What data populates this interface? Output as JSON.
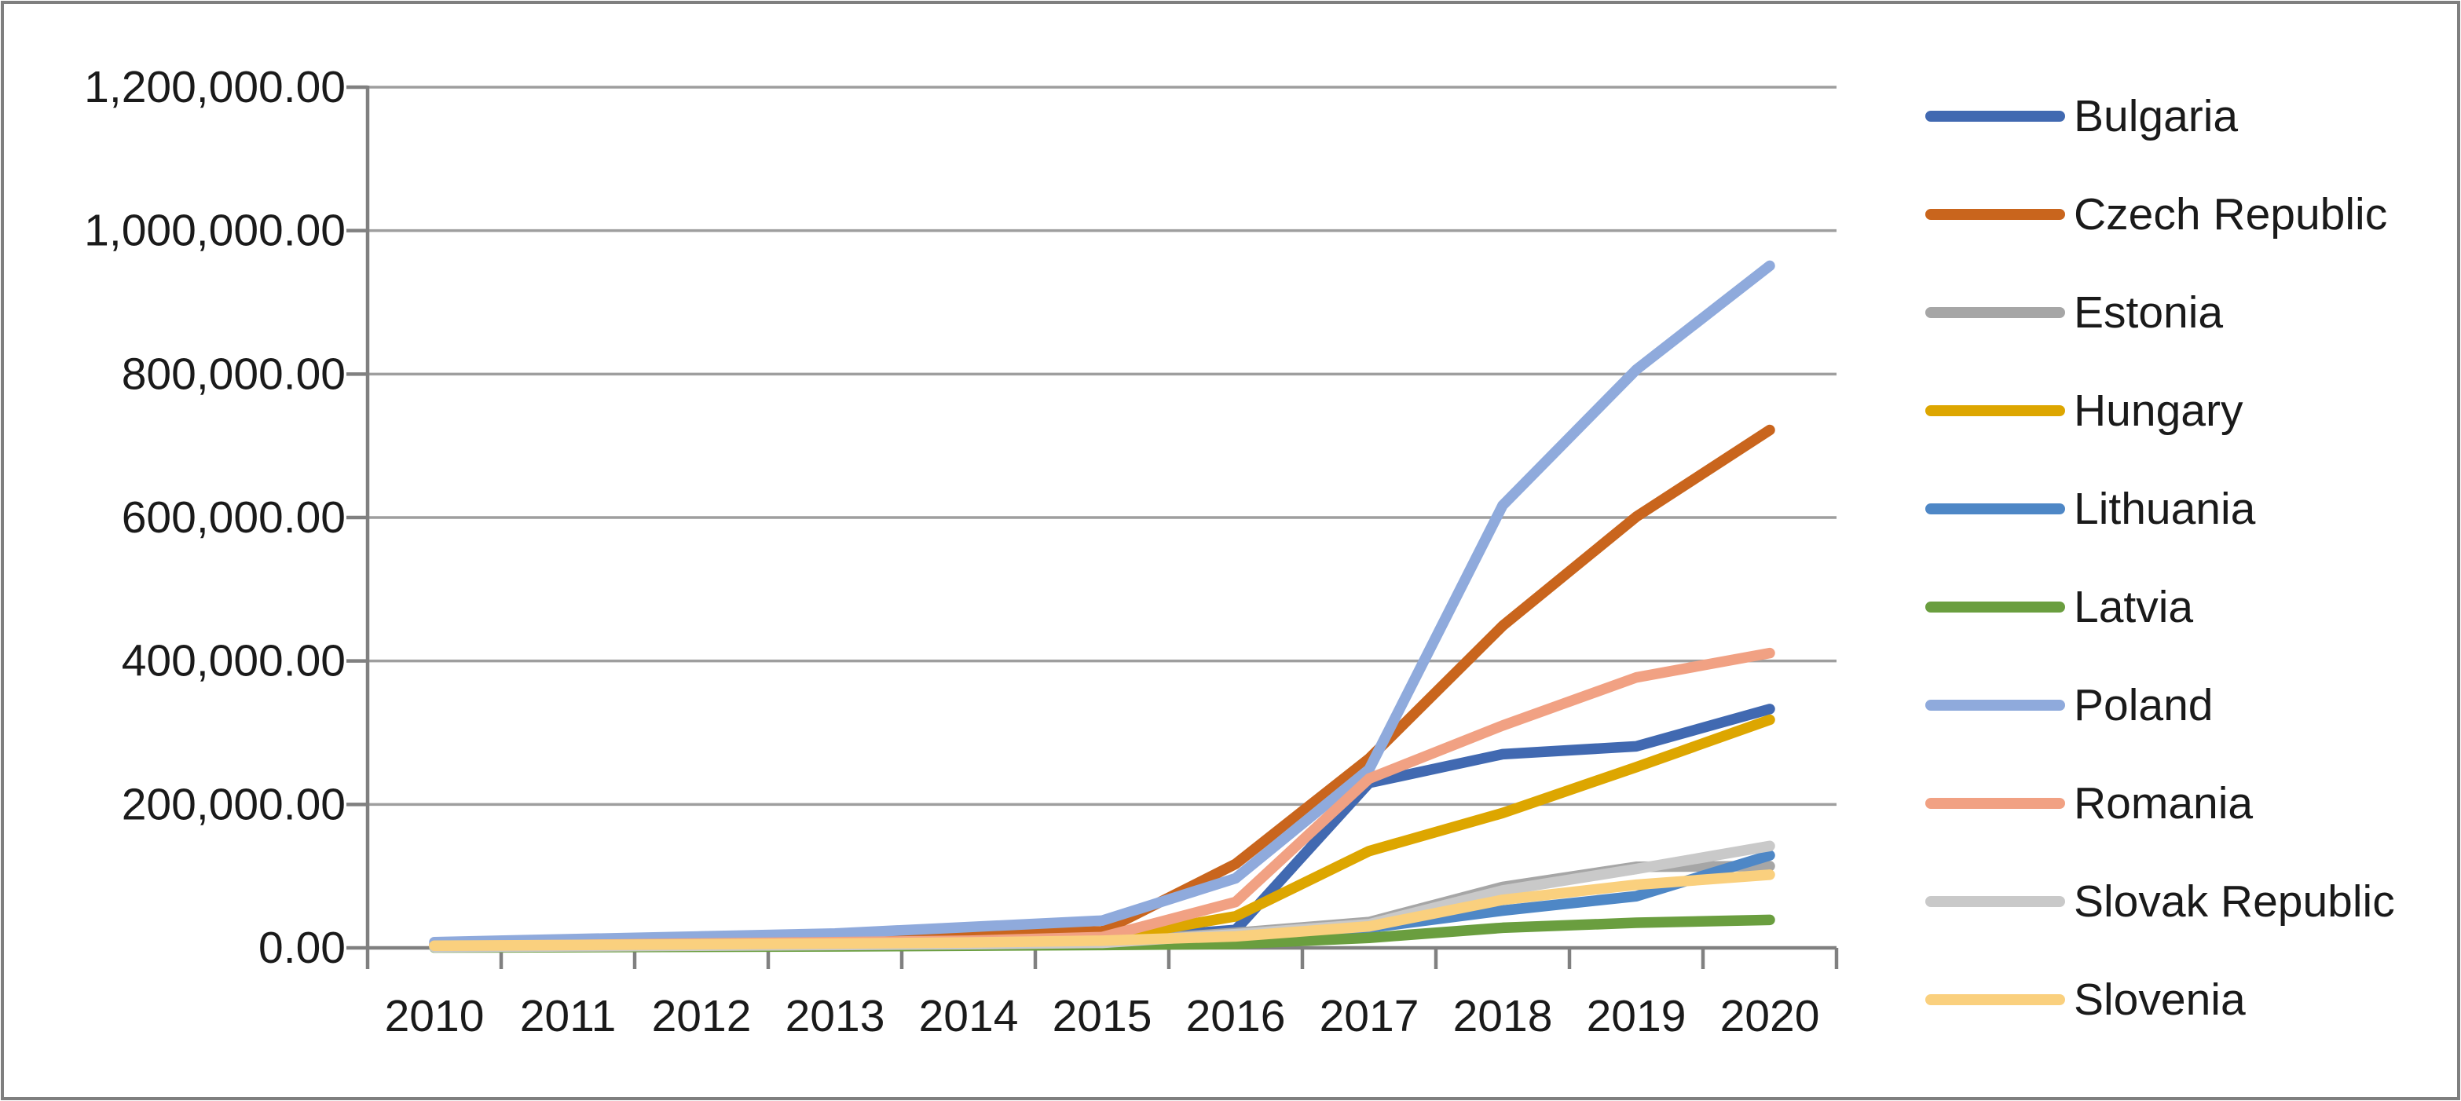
{
  "chart_data": {
    "type": "line",
    "title": "",
    "xlabel": "",
    "ylabel": "",
    "x_labels": [
      "2010",
      "2011",
      "2012",
      "2013",
      "2014",
      "2015",
      "2016",
      "2017",
      "2018",
      "2019",
      "2020"
    ],
    "ylim": [
      0,
      1200000
    ],
    "ytick_step": 200000,
    "ytick_labels": [
      "0.00",
      "200,000.00",
      "400,000.00",
      "600,000.00",
      "800,000.00",
      "1,000,000.00",
      "1,200,000.00"
    ],
    "grid": true,
    "legend_position": "right",
    "axis_color": "#808080",
    "gridline_color": "#9e9e9e",
    "border_color": "#7f7f7f",
    "series": [
      {
        "name": "Bulgaria",
        "color": "#4169b1",
        "values": [
          2000,
          3000,
          4500,
          5500,
          7000,
          11000,
          25000,
          230000,
          270000,
          281000,
          333000
        ]
      },
      {
        "name": "Czech Republic",
        "color": "#c9651d",
        "values": [
          5000,
          8000,
          12000,
          15000,
          19000,
          23000,
          117000,
          264000,
          449000,
          601000,
          722000
        ]
      },
      {
        "name": "Estonia",
        "color": "#a6a6a6",
        "values": [
          1500,
          2500,
          3500,
          4500,
          6000,
          8000,
          21000,
          36000,
          85000,
          113000,
          114000
        ]
      },
      {
        "name": "Hungary",
        "color": "#dda600",
        "values": [
          2000,
          3500,
          5000,
          6500,
          8500,
          12000,
          44000,
          135000,
          188000,
          252000,
          318000
        ]
      },
      {
        "name": "Lithuania",
        "color": "#4e87c6",
        "values": [
          1000,
          2000,
          3000,
          4000,
          5000,
          7000,
          15000,
          28000,
          52000,
          72000,
          129000
        ]
      },
      {
        "name": "Latvia",
        "color": "#6a9e3f",
        "values": [
          500,
          1000,
          1500,
          2000,
          3000,
          4000,
          5500,
          14000,
          28000,
          35000,
          39000
        ]
      },
      {
        "name": "Poland",
        "color": "#8faadc",
        "values": [
          8000,
          12000,
          16000,
          20000,
          29000,
          38000,
          97000,
          249000,
          617000,
          806000,
          951000
        ]
      },
      {
        "name": "Romania",
        "color": "#f1a183",
        "values": [
          2500,
          4000,
          6000,
          8000,
          10000,
          15000,
          64000,
          236000,
          310000,
          377000,
          411000
        ]
      },
      {
        "name": "Slovak Republic",
        "color": "#c9c9c9",
        "values": [
          1000,
          2000,
          3000,
          4000,
          5000,
          7000,
          19000,
          33000,
          80000,
          110000,
          142000
        ]
      },
      {
        "name": "Slovenia",
        "color": "#fad07e",
        "values": [
          3000,
          4000,
          5000,
          6000,
          7500,
          10000,
          16000,
          30000,
          67000,
          88000,
          102000
        ]
      }
    ]
  }
}
